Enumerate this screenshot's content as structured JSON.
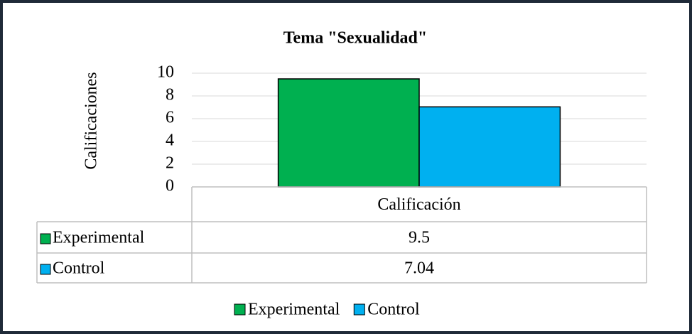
{
  "chart_data": {
    "type": "bar",
    "title": "Tema \"Sexualidad\"",
    "ylabel": "Calificaciones",
    "categories": [
      "Calificación"
    ],
    "series": [
      {
        "name": "Experimental",
        "color": "#00b050",
        "values": [
          9.5
        ]
      },
      {
        "name": "Control",
        "color": "#00b0f0",
        "values": [
          7.04
        ]
      }
    ],
    "ylim": [
      0,
      10
    ],
    "yticks": [
      0,
      2,
      4,
      6,
      8,
      10
    ],
    "grid": true,
    "legend": "bottom"
  }
}
